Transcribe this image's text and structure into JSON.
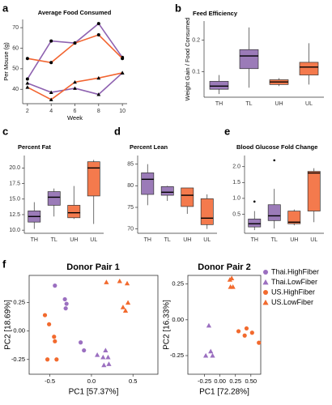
{
  "chart_data": [
    {
      "type": "line",
      "label": "a",
      "title": "Average Food Consumed",
      "xlabel": "Week",
      "ylabel": "Per Mouse (g)",
      "x": [
        2,
        4,
        6,
        8,
        10
      ],
      "xlim": [
        1.6,
        10.4
      ],
      "xticks": [
        2,
        4,
        6,
        8,
        10
      ],
      "ylim": [
        33,
        74
      ],
      "yticks": [
        40,
        50,
        60,
        70
      ],
      "series": [
        {
          "color": "#8e62b0",
          "marker": "circle",
          "values": [
            45,
            63.5,
            62.5,
            72,
            55.5
          ]
        },
        {
          "color": "#f26430",
          "marker": "circle",
          "values": [
            55,
            53,
            62.5,
            66.5,
            55
          ]
        },
        {
          "color": "#8e62b0",
          "marker": "triangle",
          "values": [
            43,
            38.5,
            40.5,
            37.5,
            48
          ]
        },
        {
          "color": "#f26430",
          "marker": "triangle",
          "values": [
            41,
            35,
            43.5,
            45.5,
            48
          ]
        }
      ]
    },
    {
      "type": "box",
      "label": "b",
      "title": "Feed Efficiency",
      "ylabel": "Weight Gain / Food Consumed",
      "categories": [
        "TH",
        "TL",
        "UH",
        "UL"
      ],
      "colors": [
        "#9b7bb8",
        "#9b7bb8",
        "#f47a4d",
        "#f47a4d"
      ],
      "ylim": [
        0.02,
        0.26
      ],
      "yticks": [
        0.1,
        0.2
      ],
      "boxes": [
        {
          "min": 0.03,
          "q1": 0.045,
          "median": 0.055,
          "q3": 0.07,
          "max": 0.09,
          "outliers": []
        },
        {
          "min": 0.05,
          "q1": 0.11,
          "median": 0.15,
          "q3": 0.17,
          "max": 0.24,
          "outliers": []
        },
        {
          "min": 0.055,
          "q1": 0.06,
          "median": 0.068,
          "q3": 0.075,
          "max": 0.08,
          "outliers": []
        },
        {
          "min": 0.06,
          "q1": 0.09,
          "median": 0.115,
          "q3": 0.13,
          "max": 0.19,
          "outliers": []
        }
      ]
    },
    {
      "type": "box",
      "label": "c",
      "title": "Percent Fat",
      "categories": [
        "TH",
        "TL",
        "UH",
        "UL"
      ],
      "colors": [
        "#9b7bb8",
        "#9b7bb8",
        "#f47a4d",
        "#f47a4d"
      ],
      "ylim": [
        9.5,
        22
      ],
      "yticks": [
        {
          "value": 10,
          "label": "10.0"
        },
        12.5,
        {
          "value": 15,
          "label": "15.0"
        },
        17.5,
        {
          "value": 20,
          "label": "20.0"
        }
      ],
      "boxes": [
        {
          "min": 10.2,
          "q1": 11.3,
          "median": 12.2,
          "q3": 13.1,
          "max": 14.5,
          "outliers": []
        },
        {
          "min": 12.2,
          "q1": 14,
          "median": 15.3,
          "q3": 16.2,
          "max": 16.7,
          "outliers": []
        },
        {
          "min": 11.8,
          "q1": 12,
          "median": 12.8,
          "q3": 14,
          "max": 17.1,
          "outliers": []
        },
        {
          "min": 11,
          "q1": 15.5,
          "median": 20,
          "q3": 21,
          "max": 21.3,
          "outliers": []
        }
      ]
    },
    {
      "type": "box",
      "label": "d",
      "title": "Percent Lean",
      "categories": [
        "TH",
        "TL",
        "UH",
        "UL"
      ],
      "colors": [
        "#9b7bb8",
        "#9b7bb8",
        "#f47a4d",
        "#f47a4d"
      ],
      "ylim": [
        69,
        87
      ],
      "yticks": [
        70,
        75,
        80,
        85
      ],
      "boxes": [
        {
          "min": 75.5,
          "q1": 78,
          "median": 81.5,
          "q3": 83,
          "max": 85,
          "outliers": []
        },
        {
          "min": 76.5,
          "q1": 77.8,
          "median": 78.5,
          "q3": 79.8,
          "max": 80,
          "outliers": []
        },
        {
          "min": 73.5,
          "q1": 75.2,
          "median": 77.8,
          "q3": 79.5,
          "max": 79.5,
          "outliers": []
        },
        {
          "min": 70,
          "q1": 71,
          "median": 72.5,
          "q3": 77,
          "max": 78,
          "outliers": []
        }
      ]
    },
    {
      "type": "box",
      "label": "e",
      "title": "Blood Glucose Fold Change",
      "categories": [
        "TH",
        "TL",
        "UH",
        "UL"
      ],
      "colors": [
        "#9b7bb8",
        "#9b7bb8",
        "#f47a4d",
        "#f47a4d"
      ],
      "ylim": [
        -0.1,
        2.35
      ],
      "yticks": [
        0.5,
        {
          "value": 1,
          "label": "1.0"
        },
        1.5,
        {
          "value": 2,
          "label": "2.0"
        }
      ],
      "boxes": [
        {
          "min": 0,
          "q1": 0.1,
          "median": 0.2,
          "q3": 0.35,
          "max": 0.6,
          "outliers": [
            0.9
          ]
        },
        {
          "min": 0.05,
          "q1": 0.3,
          "median": 0.45,
          "q3": 0.8,
          "max": 1.3,
          "outliers": [
            2.2
          ]
        },
        {
          "min": 0.15,
          "q1": 0.2,
          "median": 0.25,
          "q3": 0.6,
          "max": 0.65,
          "outliers": []
        },
        {
          "min": 0.25,
          "q1": 0.6,
          "median": 1.8,
          "q3": 1.85,
          "max": 1.95,
          "outliers": []
        }
      ]
    },
    {
      "type": "scatter",
      "label": "f",
      "title": "Donor Pair 1",
      "xlabel": "PC1 [57.37%]",
      "ylabel": "PC2 [18.69%]",
      "legend": true,
      "xlim": [
        -0.75,
        0.8
      ],
      "xticks": [
        -0.5,
        {
          "value": 0,
          "label": "0.0"
        },
        0.5
      ],
      "ylim": [
        -0.38,
        0.49
      ],
      "yticks": [
        0.25,
        {
          "value": 0,
          "label": "0.00"
        },
        -0.25
      ],
      "series": [
        {
          "name": "Thai.HighFiber",
          "color": "#9b6fc0",
          "marker": "circle",
          "x": [
            -0.44,
            -0.32,
            -0.3,
            -0.31,
            -0.13,
            -0.09
          ],
          "values": [
            0.4,
            0.28,
            0.24,
            0.2,
            -0.1,
            -0.17
          ]
        },
        {
          "name": "Thai.LowFiber",
          "color": "#9b6fc0",
          "marker": "triangle",
          "x": [
            0.07,
            0.14,
            0.17,
            0.2,
            0.21,
            0.15
          ],
          "values": [
            -0.21,
            -0.23,
            -0.17,
            -0.23,
            -0.29,
            -0.3
          ]
        },
        {
          "name": "US.HighFiber",
          "color": "#f26a2e",
          "marker": "circle",
          "x": [
            -0.56,
            -0.51,
            -0.45,
            -0.44,
            -0.53,
            -0.42
          ],
          "values": [
            0.14,
            0.06,
            -0.05,
            -0.09,
            -0.25,
            -0.25
          ]
        },
        {
          "name": "US.LowFiber",
          "color": "#f26a2e",
          "marker": "triangle",
          "x": [
            0.18,
            0.34,
            0.43,
            0.38,
            0.41,
            0.44
          ],
          "values": [
            0.43,
            0.44,
            0.42,
            0.21,
            0.18,
            0.25
          ]
        }
      ]
    },
    {
      "type": "scatter",
      "title": "Donor Pair 2",
      "xlabel": "PC1 [72.28%]",
      "ylabel": "PC2 [16.33%]",
      "xlim": [
        -0.52,
        0.66
      ],
      "xticks": [
        -0.25,
        {
          "value": 0,
          "label": "0.00"
        },
        0.25,
        {
          "value": 0.5,
          "label": "0.50"
        }
      ],
      "ylim": [
        -0.38,
        0.31
      ],
      "yticks": [
        0.25,
        {
          "value": 0,
          "label": "0.00"
        },
        -0.25
      ],
      "series": [
        {
          "color": "#9b6fc0",
          "marker": "triangle",
          "x": [
            -0.18,
            -0.23,
            -0.15,
            -0.12
          ],
          "values": [
            -0.04,
            -0.25,
            -0.22,
            -0.25
          ]
        },
        {
          "color": "#f26a2e",
          "marker": "circle",
          "x": [
            0.3,
            0.4,
            0.43,
            0.52,
            0.63
          ],
          "values": [
            -0.08,
            -0.11,
            -0.06,
            -0.09,
            -0.16
          ]
        },
        {
          "color": "#f26a2e",
          "marker": "triangle",
          "x": [
            0.16,
            0.19,
            0.17,
            0.21
          ],
          "values": [
            0.28,
            0.29,
            0.23,
            0.23
          ]
        }
      ]
    }
  ]
}
